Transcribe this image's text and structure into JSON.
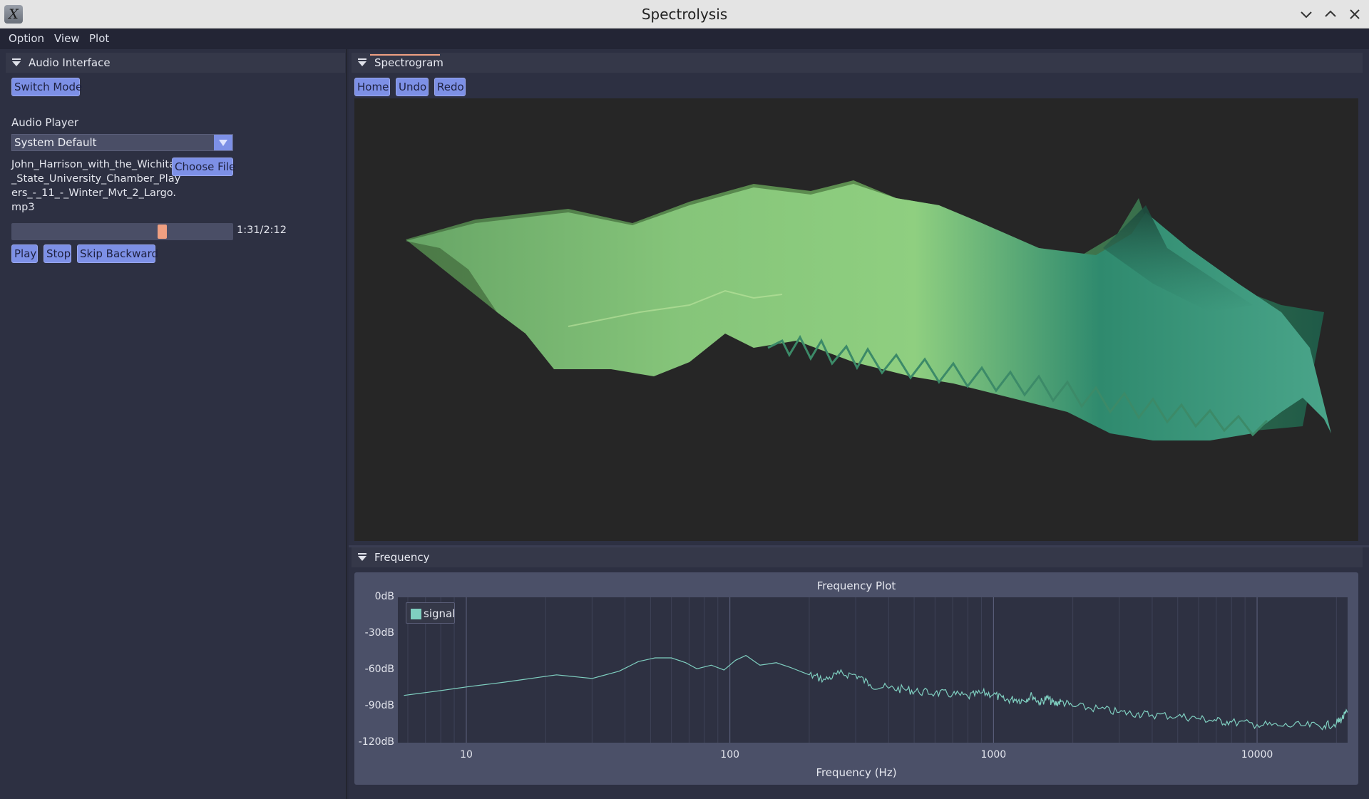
{
  "window": {
    "title": "Spectrolysis",
    "app_icon_glyph": "X"
  },
  "menu": [
    "Option",
    "View",
    "Plot"
  ],
  "audio_interface": {
    "header": "Audio Interface",
    "switch_mode_label": "Switch Mode",
    "audio_player_label": "Audio Player",
    "device_selected": "System Default",
    "file_name_lines": [
      "John_Harrison_with_the_Wichita",
      "_State_University_Chamber_Play",
      "ers_-_11_-_Winter_Mvt_2_Largo.",
      "mp3"
    ],
    "choose_file_label": "Choose File",
    "time_display": "1:31/2:12",
    "playback_fraction": 0.689,
    "play_label": "Play",
    "stop_label": "Stop",
    "skip_backward_label": "Skip Backward"
  },
  "spectrogram": {
    "header": "Spectrogram",
    "home_label": "Home",
    "undo_label": "Undo",
    "redo_label": "Redo"
  },
  "frequency": {
    "header": "Frequency"
  },
  "colors": {
    "accent": "#7d90e6",
    "highlight": "#f0a082",
    "signal": "#7fcfc0"
  },
  "chart_data": {
    "type": "line",
    "title": "Frequency Plot",
    "xlabel": "Frequency (Hz)",
    "ylabel": "",
    "x_scale": "log",
    "xlim": [
      5.5,
      22050
    ],
    "ylim": [
      -120,
      0
    ],
    "x_ticks": [
      10,
      100,
      1000,
      10000
    ],
    "x_tick_labels": [
      "10",
      "100",
      "1000",
      "10000"
    ],
    "y_ticks": [
      0,
      -30,
      -60,
      -90,
      -120
    ],
    "y_tick_labels": [
      "0dB",
      "-30dB",
      "-60dB",
      "-90dB",
      "-120dB"
    ],
    "legend_position": "top-left",
    "grid": true,
    "series": [
      {
        "name": "signal",
        "x": [
          5.8,
          8,
          10,
          14,
          22,
          30,
          38,
          45,
          52,
          60,
          68,
          75,
          85,
          95,
          105,
          115,
          130,
          150,
          170,
          200,
          230,
          260,
          300,
          340,
          400,
          460,
          520,
          600,
          700,
          800,
          900,
          1000,
          1100,
          1200,
          1300,
          1400,
          1500,
          1600,
          1700,
          1800,
          2000,
          2500,
          3000,
          3500,
          4000,
          5000,
          6000,
          7000,
          8000,
          10000,
          12000,
          15000,
          18000,
          20000,
          21000,
          22000
        ],
        "y": [
          -81,
          -77,
          -74,
          -70,
          -64,
          -67,
          -61,
          -53,
          -50,
          -50,
          -54,
          -59,
          -56,
          -60,
          -52,
          -48,
          -56,
          -54,
          -58,
          -64,
          -68,
          -63,
          -64,
          -72,
          -75,
          -76,
          -78,
          -79,
          -80,
          -82,
          -79,
          -80,
          -85,
          -84,
          -85,
          -81,
          -87,
          -83,
          -88,
          -86,
          -90,
          -92,
          -95,
          -96,
          -97,
          -98,
          -100,
          -102,
          -103,
          -105,
          -106,
          -106,
          -106,
          -104,
          -100,
          -95
        ]
      }
    ]
  }
}
